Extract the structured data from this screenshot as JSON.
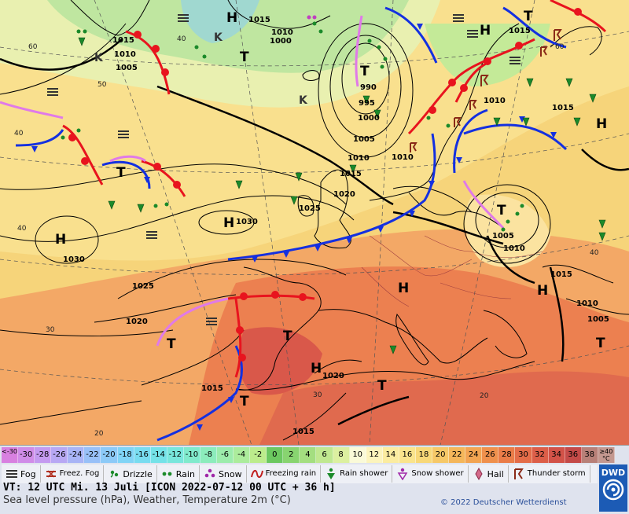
{
  "map": {
    "pressure_labels": [
      "1015",
      "1010",
      "1005",
      "1000",
      "1005",
      "1010",
      "1015",
      "990",
      "995",
      "1000",
      "1005",
      "1010",
      "1015",
      "1020",
      "1025",
      "1030",
      "1030",
      "1025",
      "1020",
      "1015",
      "1015",
      "1020",
      "1010",
      "1005",
      "1015",
      "1010",
      "1005",
      "1010",
      "1015",
      "1005",
      "1010",
      "1015",
      "1000",
      "1005",
      "1010"
    ],
    "centers": [
      "H",
      "T",
      "T",
      "H",
      "H",
      "T",
      "T",
      "T",
      "H",
      "T",
      "H",
      "H",
      "T",
      "T",
      "H",
      "H",
      "T",
      "T"
    ],
    "k_letters": [
      "K",
      "K",
      "K"
    ],
    "temp_contour_labels": [
      "60",
      "50",
      "40",
      "40",
      "30",
      "20",
      "20",
      "60",
      "40",
      "40",
      "30"
    ]
  },
  "scale": {
    "values": [
      "<-30",
      "-30",
      "-28",
      "-26",
      "-24",
      "-22",
      "-20",
      "-18",
      "-16",
      "-14",
      "-12",
      "-10",
      "-8",
      "-6",
      "-4",
      "-2",
      "0",
      "2",
      "4",
      "6",
      "8",
      "10",
      "12",
      "14",
      "16",
      "18",
      "20",
      "22",
      "24",
      "26",
      "28",
      "30",
      "32",
      "34",
      "36",
      "38",
      "≥40 °C"
    ],
    "colors": [
      "#d880e0",
      "#d08ce8",
      "#c49af0",
      "#b8a8f4",
      "#a8b4f6",
      "#98c0f8",
      "#8ccaf8",
      "#80d4f6",
      "#78dcf0",
      "#74e2e8",
      "#78e6dc",
      "#80eacc",
      "#8cecbc",
      "#9cecac",
      "#acec9c",
      "#bcec8c",
      "#6cc860",
      "#88d470",
      "#a4de80",
      "#c0e890",
      "#dcf0a0",
      "#fafad8",
      "#fcf4bc",
      "#fbeca0",
      "#fae48c",
      "#f8d878",
      "#f6c868",
      "#f4b65a",
      "#f2a452",
      "#ef904c",
      "#ea7c48",
      "#e46c48",
      "#dc5e48",
      "#d25248",
      "#c44a48",
      "#b88078",
      "#c49890"
    ]
  },
  "legend": {
    "items": [
      {
        "name": "fog",
        "label": "Fog"
      },
      {
        "name": "freezing-fog",
        "label": "Freez. Fog"
      },
      {
        "name": "drizzle",
        "label": "Drizzle"
      },
      {
        "name": "rain",
        "label": "Rain"
      },
      {
        "name": "snow",
        "label": "Snow"
      },
      {
        "name": "freezing-rain",
        "label": "Freezing rain"
      },
      {
        "name": "rain-shower",
        "label": "Rain shower"
      },
      {
        "name": "snow-shower",
        "label": "Snow shower"
      },
      {
        "name": "hail",
        "label": "Hail"
      },
      {
        "name": "thunderstorm",
        "label": "Thunder storm"
      }
    ]
  },
  "footer": {
    "vt": "VT: 12 UTC Mi.  13 Juli [ICON 2022-07-12  00 UTC + 36 h]",
    "description": "Sea level pressure (hPa), Weather, Temperature 2m (°C)",
    "copyright": "© 2022 Deutscher Wetterdienst",
    "logo": "DWD"
  },
  "colors": {
    "warm_front": "#e8141e",
    "cold_front": "#1430e0",
    "occlusion": "#e07ae8",
    "isobar": "#000000"
  }
}
